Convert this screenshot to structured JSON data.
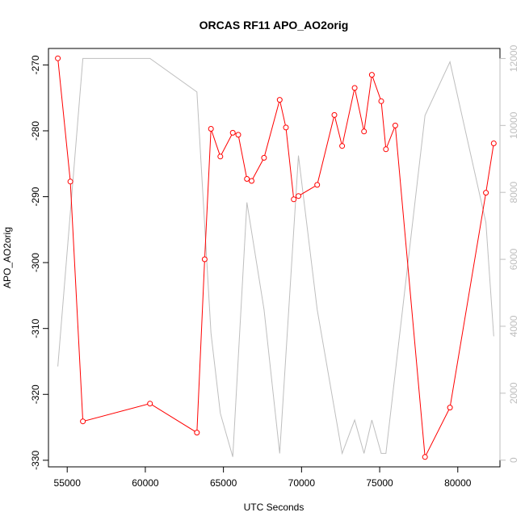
{
  "chart_data": {
    "type": "line",
    "title": "ORCAS RF11 APO_AO2orig",
    "xlabel": "UTC Seconds",
    "ylabel": "APO_AO2orig",
    "xlim": [
      53800,
      82700
    ],
    "ylim": [
      -331,
      -267.5
    ],
    "y2lim": [
      -200,
      12300
    ],
    "x_ticks": [
      55000,
      60000,
      65000,
      70000,
      75000,
      80000
    ],
    "y_ticks": [
      -270,
      -280,
      -290,
      -300,
      -310,
      -320,
      -330
    ],
    "y2_ticks": [
      0,
      2000,
      4000,
      6000,
      8000,
      10000,
      12000
    ],
    "series": [
      {
        "axis": "left",
        "color": "#ff0000",
        "style": "line+circles",
        "x": [
          54400,
          55200,
          56000,
          60300,
          63300,
          63800,
          64200,
          64800,
          65600,
          65950,
          66500,
          66800,
          67600,
          68600,
          69000,
          69500,
          69800,
          71000,
          72100,
          72600,
          73400,
          74000,
          74500,
          75100,
          75400,
          76000,
          77900,
          79500,
          81800,
          82300
        ],
        "y": [
          -269,
          -287.7,
          -324.1,
          -321.4,
          -325.8,
          -299.5,
          -279.7,
          -283.9,
          -280.3,
          -280.6,
          -287.3,
          -287.6,
          -284.1,
          -275.3,
          -279.5,
          -290.4,
          -289.9,
          -288.2,
          -277.6,
          -282.3,
          -273.5,
          -280.1,
          -271.5,
          -275.5,
          -282.8,
          -279.2,
          -329.5,
          -322,
          -289.4,
          -281.9
        ]
      },
      {
        "axis": "right",
        "color": "#bebebe",
        "style": "line",
        "x": [
          54400,
          56000,
          60300,
          63300,
          64200,
          64800,
          65600,
          66500,
          67600,
          68600,
          69800,
          71000,
          72600,
          73400,
          74000,
          74500,
          75100,
          75400,
          77900,
          79500,
          81800,
          82300
        ],
        "y": [
          2800,
          12000,
          12000,
          11000,
          3800,
          1400,
          100,
          7700,
          4500,
          200,
          9100,
          4500,
          200,
          1200,
          200,
          1200,
          200,
          200,
          10300,
          11900,
          7100,
          3700
        ]
      }
    ]
  }
}
